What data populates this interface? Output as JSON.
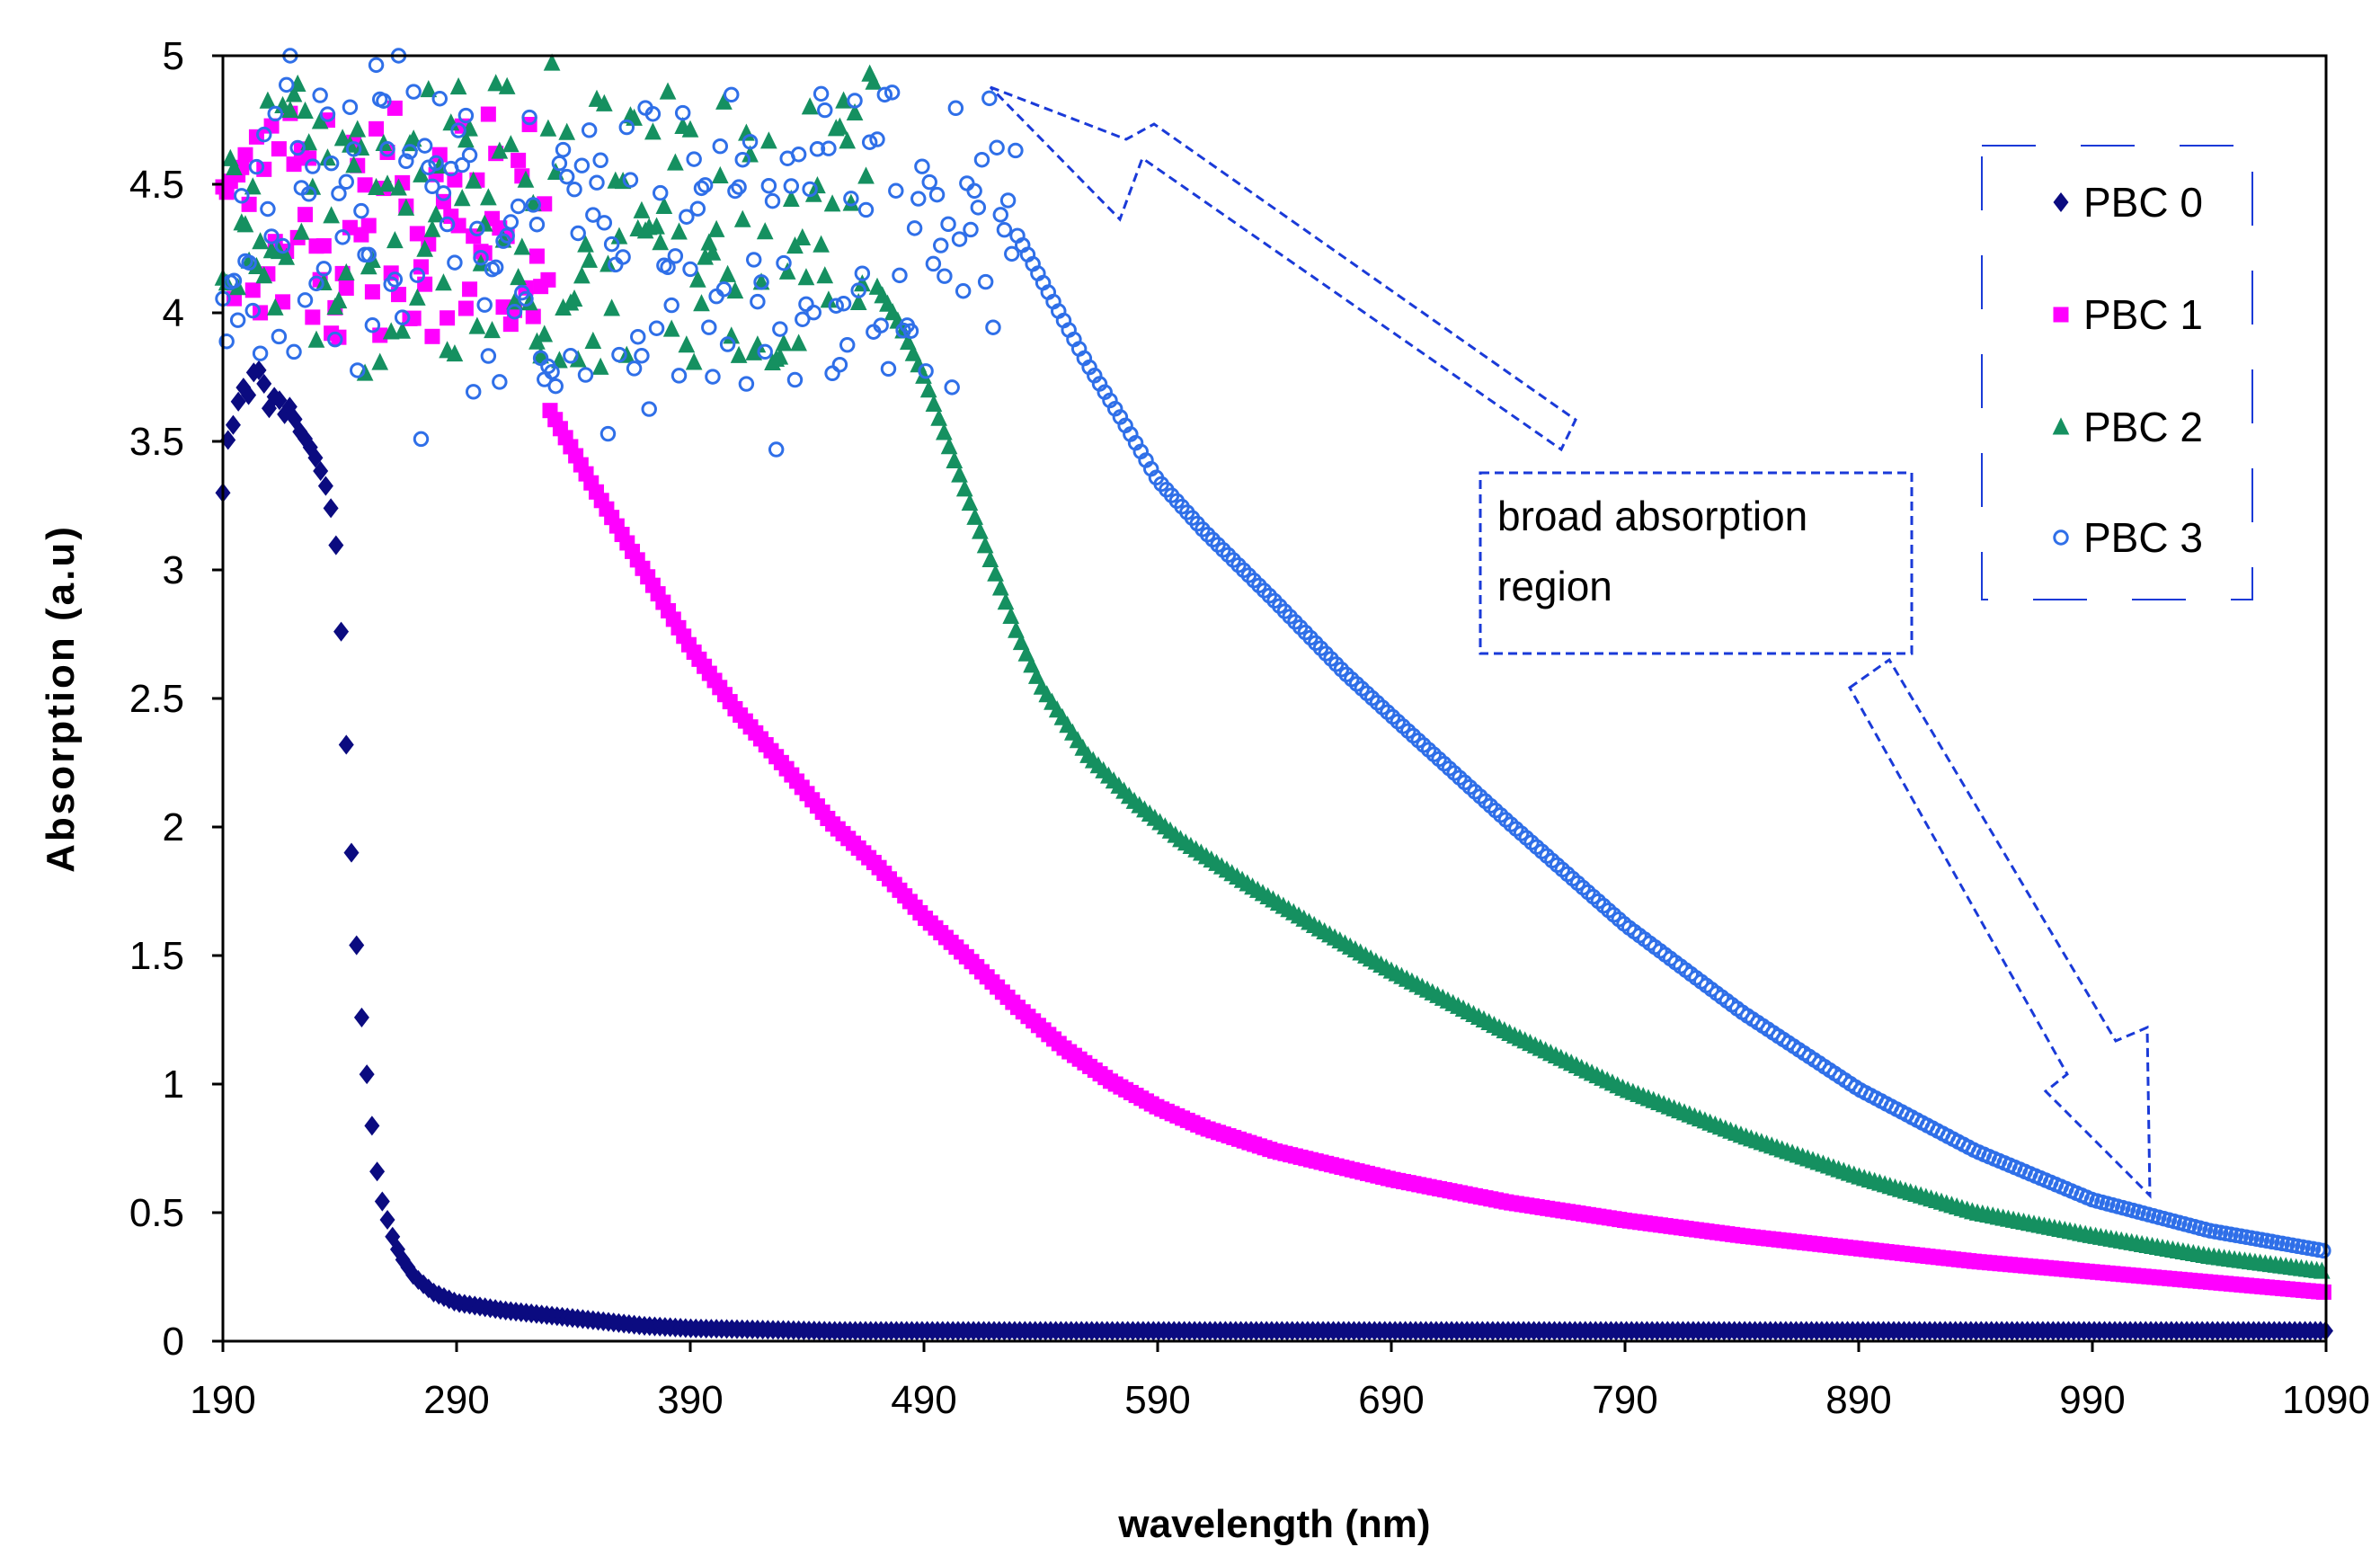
{
  "chart_data": {
    "type": "scatter",
    "title": "",
    "xlabel": "wavelength (nm)",
    "ylabel": "Absorption (a.u)",
    "xlim": [
      190,
      1090
    ],
    "ylim": [
      0,
      5
    ],
    "x_ticks": [
      190,
      290,
      390,
      490,
      590,
      690,
      790,
      890,
      990,
      1090
    ],
    "y_ticks": [
      0,
      0.5,
      1,
      1.5,
      2,
      2.5,
      3,
      3.5,
      4,
      4.5,
      5
    ],
    "y_tick_labels": [
      "0",
      "0.5",
      "1",
      "1.5",
      "2",
      "2.5",
      "3",
      "3.5",
      "4",
      "4.5",
      "5"
    ],
    "grid": false,
    "legend_position": "top-right",
    "series": [
      {
        "name": "PBC 0",
        "marker": "diamond",
        "color": "#0b0b80",
        "noisy_until": null,
        "points": [
          [
            190,
            3.3
          ],
          [
            192,
            3.5
          ],
          [
            195,
            3.58
          ],
          [
            198,
            3.72
          ],
          [
            201,
            3.68
          ],
          [
            204,
            3.8
          ],
          [
            207,
            3.75
          ],
          [
            210,
            3.62
          ],
          [
            213,
            3.7
          ],
          [
            216,
            3.6
          ],
          [
            219,
            3.64
          ],
          [
            222,
            3.55
          ],
          [
            226,
            3.5
          ],
          [
            229,
            3.45
          ],
          [
            232,
            3.38
          ],
          [
            235,
            3.3
          ],
          [
            238,
            3.15
          ],
          [
            240,
            2.88
          ],
          [
            242,
            2.48
          ],
          [
            244,
            2.08
          ],
          [
            246,
            1.72
          ],
          [
            248,
            1.42
          ],
          [
            250,
            1.19
          ],
          [
            252,
            1.0
          ],
          [
            254,
            0.82
          ],
          [
            256,
            0.66
          ],
          [
            258,
            0.55
          ],
          [
            262,
            0.42
          ],
          [
            266,
            0.33
          ],
          [
            272,
            0.25
          ],
          [
            280,
            0.19
          ],
          [
            290,
            0.15
          ],
          [
            310,
            0.12
          ],
          [
            340,
            0.09
          ],
          [
            370,
            0.06
          ],
          [
            390,
            0.05
          ],
          [
            450,
            0.04
          ],
          [
            600,
            0.04
          ],
          [
            800,
            0.04
          ],
          [
            1000,
            0.04
          ],
          [
            1090,
            0.04
          ]
        ]
      },
      {
        "name": "PBC 1",
        "marker": "square",
        "color": "#ff00ff",
        "noisy_until": 330,
        "noise_band": [
          3.9,
          4.8
        ],
        "points": [
          [
            330,
            3.62
          ],
          [
            350,
            3.3
          ],
          [
            370,
            3.0
          ],
          [
            390,
            2.7
          ],
          [
            410,
            2.45
          ],
          [
            430,
            2.24
          ],
          [
            450,
            2.02
          ],
          [
            470,
            1.85
          ],
          [
            490,
            1.65
          ],
          [
            510,
            1.48
          ],
          [
            530,
            1.3
          ],
          [
            550,
            1.14
          ],
          [
            570,
            1.01
          ],
          [
            590,
            0.91
          ],
          [
            610,
            0.83
          ],
          [
            640,
            0.74
          ],
          [
            690,
            0.63
          ],
          [
            740,
            0.54
          ],
          [
            790,
            0.47
          ],
          [
            840,
            0.41
          ],
          [
            890,
            0.36
          ],
          [
            940,
            0.31
          ],
          [
            990,
            0.27
          ],
          [
            1040,
            0.23
          ],
          [
            1090,
            0.19
          ]
        ]
      },
      {
        "name": "PBC 2",
        "marker": "triangle",
        "color": "#159060",
        "noisy_until": 470,
        "noise_band": [
          3.8,
          4.9
        ],
        "points": [
          [
            470,
            4.1
          ],
          [
            480,
            3.95
          ],
          [
            490,
            3.75
          ],
          [
            500,
            3.5
          ],
          [
            510,
            3.25
          ],
          [
            520,
            3.0
          ],
          [
            530,
            2.75
          ],
          [
            540,
            2.55
          ],
          [
            560,
            2.28
          ],
          [
            580,
            2.1
          ],
          [
            600,
            1.95
          ],
          [
            630,
            1.77
          ],
          [
            660,
            1.6
          ],
          [
            690,
            1.44
          ],
          [
            740,
            1.2
          ],
          [
            790,
            0.98
          ],
          [
            840,
            0.8
          ],
          [
            890,
            0.64
          ],
          [
            940,
            0.5
          ],
          [
            990,
            0.41
          ],
          [
            1040,
            0.33
          ],
          [
            1090,
            0.27
          ]
        ]
      },
      {
        "name": "PBC 3",
        "marker": "circle",
        "color": "#2f6fe8",
        "noisy_until": 530,
        "noise_band": [
          3.7,
          4.9
        ],
        "points": [
          [
            530,
            4.3
          ],
          [
            545,
            4.05
          ],
          [
            560,
            3.8
          ],
          [
            575,
            3.58
          ],
          [
            590,
            3.35
          ],
          [
            610,
            3.15
          ],
          [
            640,
            2.88
          ],
          [
            670,
            2.6
          ],
          [
            700,
            2.35
          ],
          [
            740,
            2.02
          ],
          [
            790,
            1.62
          ],
          [
            840,
            1.28
          ],
          [
            890,
            0.98
          ],
          [
            940,
            0.74
          ],
          [
            990,
            0.55
          ],
          [
            1040,
            0.43
          ],
          [
            1090,
            0.35
          ]
        ]
      }
    ],
    "annotation": {
      "text_lines": [
        "broad absorption",
        "region"
      ],
      "color": "#1a3ad8"
    }
  }
}
